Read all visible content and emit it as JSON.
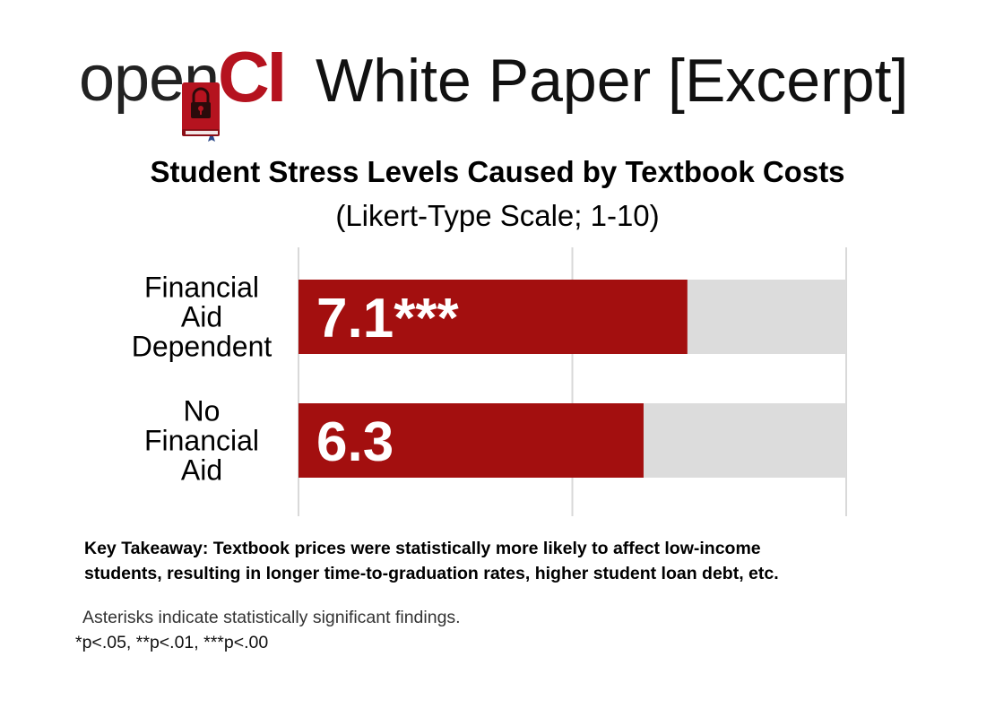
{
  "logo": {
    "text_open": "open",
    "text_ci": "CI"
  },
  "header_title": "White Paper [Excerpt]",
  "colors": {
    "brand_red": "#b5131f",
    "bar_red": "#a30f0f",
    "bar_track": "#dcdcdc",
    "grid": "#d9d9d9"
  },
  "chart_data": {
    "type": "bar",
    "orientation": "horizontal",
    "title": "Student Stress Levels Caused by Textbook Costs",
    "subtitle": "(Likert-Type Scale; 1-10)",
    "categories": [
      [
        "Financial",
        "Aid",
        "Dependent"
      ],
      [
        "No",
        "Financial",
        "Aid"
      ]
    ],
    "values": [
      7.1,
      6.3
    ],
    "data_labels": [
      "7.1***",
      "6.3"
    ],
    "xlim": [
      0,
      10
    ],
    "grid": true,
    "xlabel": "",
    "ylabel": ""
  },
  "takeaway": {
    "line1": "Key Takeaway: Textbook prices were statistically more likely to affect low-income",
    "line2": "students, resulting in longer time-to-graduation rates, higher student loan debt, etc."
  },
  "notes": {
    "line1": "Asterisks indicate statistically significant findings.",
    "line2": "*p<.05, **p<.01, ***p<.00"
  }
}
